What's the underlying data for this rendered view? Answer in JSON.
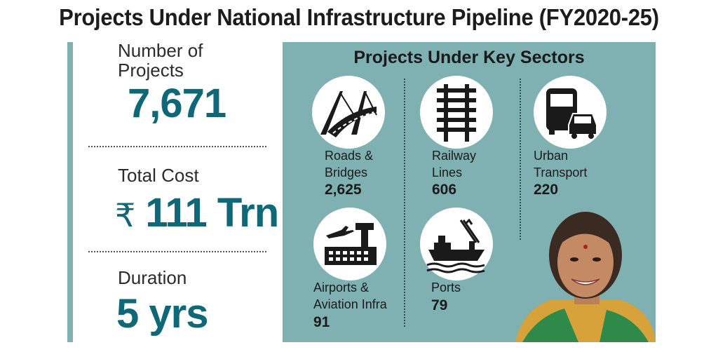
{
  "title": "Projects Under National Infrastructure Pipeline (FY2020-25)",
  "stats": {
    "projects": {
      "label_line1": "Number of",
      "label_line2": "Projects",
      "value": "7,671"
    },
    "cost": {
      "label": "Total Cost",
      "currency": "₹",
      "value": "111 Trn"
    },
    "duration": {
      "label": "Duration",
      "value": "5 yrs"
    }
  },
  "sectors_panel": {
    "title": "Projects Under Key Sectors",
    "sectors": [
      {
        "icon": "bridge-icon",
        "line1": "Roads &",
        "line2": "Bridges",
        "value": "2,625"
      },
      {
        "icon": "railway-track-icon",
        "line1": "Railway",
        "line2": "Lines",
        "value": "606"
      },
      {
        "icon": "bus-car-icon",
        "line1": "Urban",
        "line2": "Transport",
        "value": "220"
      },
      {
        "icon": "airport-icon",
        "line1": "Airports &",
        "line2": "Aviation Infra",
        "value": "91"
      },
      {
        "icon": "port-ship-crane-icon",
        "line1": "Ports",
        "line2": "",
        "value": "79"
      }
    ]
  },
  "colors": {
    "accent": "#0e6878",
    "panel": "#7fb0b2"
  }
}
